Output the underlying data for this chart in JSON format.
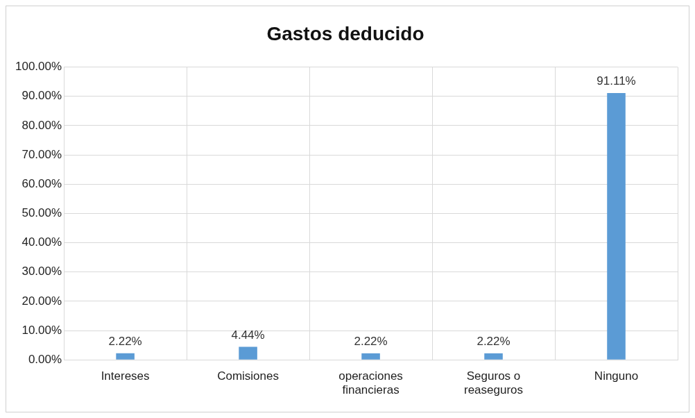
{
  "chart_data": {
    "type": "bar",
    "title": "Gastos deducido",
    "categories": [
      "Intereses",
      "Comisiones",
      "operaciones financieras",
      "Seguros o reaseguros",
      "Ninguno"
    ],
    "values": [
      2.22,
      4.44,
      2.22,
      2.22,
      91.11
    ],
    "value_labels": [
      "2.22%",
      "4.44%",
      "2.22%",
      "2.22%",
      "91.11%"
    ],
    "color": "#5b9bd5",
    "ylim": [
      0,
      100
    ],
    "yticks": [
      {
        "value": 0,
        "label": "0.00%"
      },
      {
        "value": 10,
        "label": "10.00%"
      },
      {
        "value": 20,
        "label": "20.00%"
      },
      {
        "value": 30,
        "label": "30.00%"
      },
      {
        "value": 40,
        "label": "40.00%"
      },
      {
        "value": 50,
        "label": "50.00%"
      },
      {
        "value": 60,
        "label": "60.00%"
      },
      {
        "value": 70,
        "label": "70.00%"
      },
      {
        "value": 80,
        "label": "80.00%"
      },
      {
        "value": 90,
        "label": "90.00%"
      },
      {
        "value": 100,
        "label": "100.00%"
      }
    ],
    "grid": true,
    "legend": false
  }
}
